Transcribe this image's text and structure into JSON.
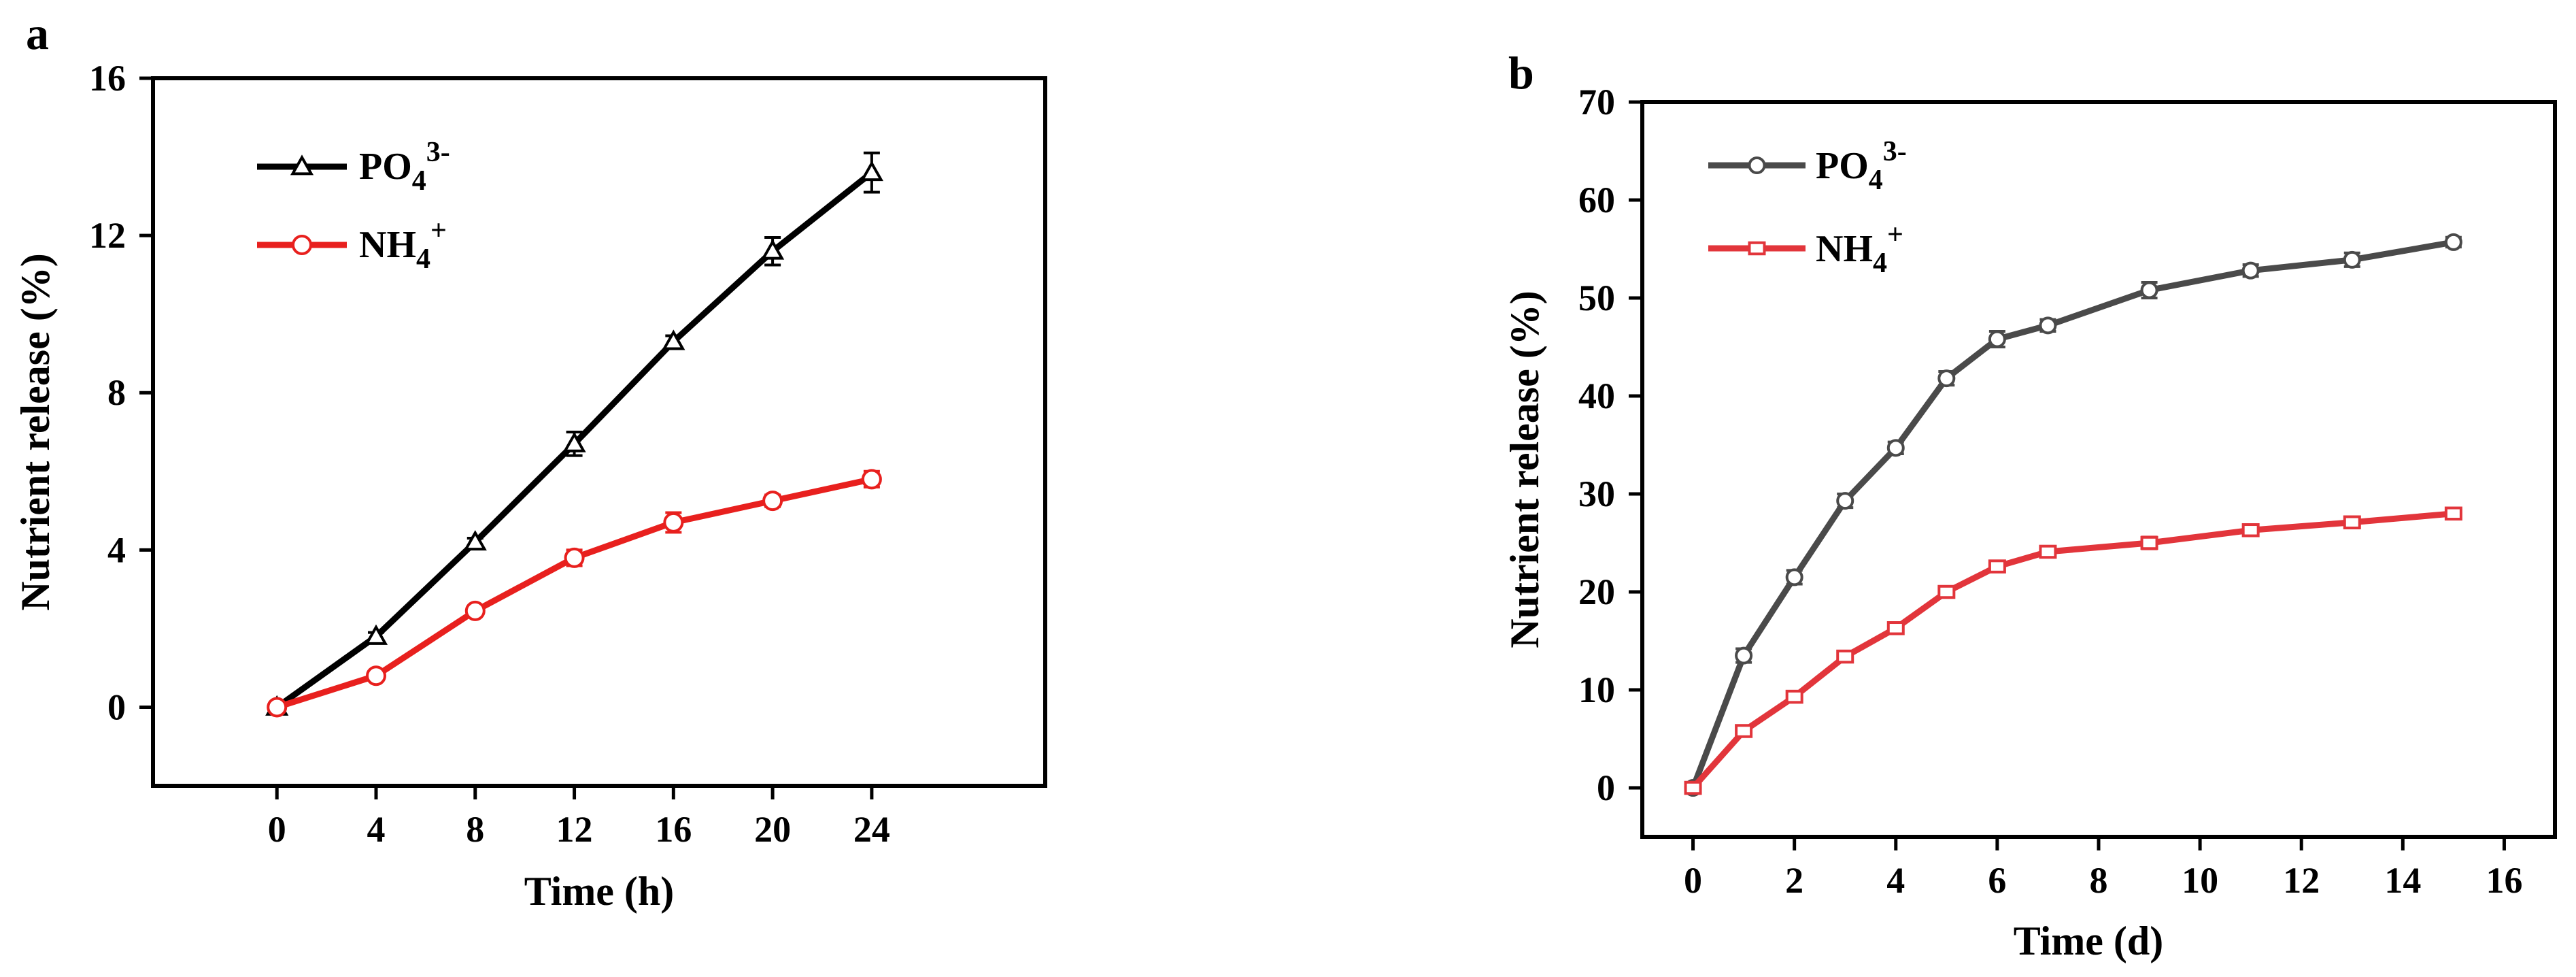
{
  "chart_data": [
    {
      "panel": "a",
      "type": "line",
      "xlabel": "Time (h)",
      "ylabel": "Nutrient release (%)",
      "xlim": [
        -5,
        31
      ],
      "ylim": [
        -2,
        16
      ],
      "xticks": [
        0,
        4,
        8,
        12,
        16,
        20,
        24
      ],
      "yticks": [
        0,
        4,
        8,
        12,
        16
      ],
      "legend_position": "top-left",
      "series": [
        {
          "name": "PO4 3-",
          "legend_main": "PO",
          "legend_sub": "4",
          "legend_sup": "3-",
          "color": "#000000",
          "marker": "triangle-open",
          "x": [
            0,
            4,
            8,
            12,
            16,
            20,
            24
          ],
          "values": [
            0,
            1.8,
            4.2,
            6.7,
            9.3,
            11.6,
            13.6
          ],
          "errors": [
            0.05,
            0.1,
            0.1,
            0.3,
            0.15,
            0.35,
            0.5
          ]
        },
        {
          "name": "NH4 +",
          "legend_main": "NH",
          "legend_sub": "4",
          "legend_sup": "+",
          "color": "#e8201e",
          "marker": "circle-open",
          "x": [
            0,
            4,
            8,
            12,
            16,
            20,
            24
          ],
          "values": [
            0,
            0.8,
            2.45,
            3.8,
            4.7,
            5.25,
            5.8
          ],
          "errors": [
            0.05,
            0.05,
            0.1,
            0.2,
            0.25,
            0.15,
            0.2
          ]
        }
      ]
    },
    {
      "panel": "b",
      "type": "line",
      "xlabel": "Time (d)",
      "ylabel": "Nutrient release (%)",
      "xlim": [
        -1,
        17
      ],
      "ylim": [
        -5,
        70
      ],
      "xticks": [
        0,
        2,
        4,
        6,
        8,
        10,
        12,
        14,
        16
      ],
      "yticks": [
        0,
        10,
        20,
        30,
        40,
        50,
        60,
        70
      ],
      "legend_position": "top-left",
      "series": [
        {
          "name": "PO4 3-",
          "legend_main": "PO",
          "legend_sub": "4",
          "legend_sup": "3-",
          "color": "#4a4a4a",
          "marker": "circle-open",
          "x": [
            0,
            1,
            2,
            3,
            4,
            5,
            6,
            7,
            9,
            11,
            13,
            15
          ],
          "values": [
            0,
            13.5,
            21.5,
            29.3,
            34.7,
            41.8,
            45.8,
            47.2,
            50.8,
            52.8,
            53.9,
            55.7
          ],
          "errors": [
            0.2,
            0.7,
            0.7,
            0.7,
            0.6,
            0.7,
            0.8,
            0.6,
            0.8,
            0.6,
            0.7,
            0.5
          ]
        },
        {
          "name": "NH4 +",
          "legend_main": "NH",
          "legend_sub": "4",
          "legend_sup": "+",
          "color": "#e2353b",
          "marker": "square-open",
          "x": [
            0,
            1,
            2,
            3,
            4,
            5,
            6,
            7,
            9,
            11,
            13,
            15
          ],
          "values": [
            0,
            5.8,
            9.3,
            13.4,
            16.3,
            20.0,
            22.6,
            24.1,
            25.0,
            26.3,
            27.1,
            28.0
          ],
          "errors": [
            0.2,
            0.5,
            0.5,
            0.5,
            0.5,
            0.5,
            0.5,
            0.5,
            0.6,
            0.5,
            0.5,
            0.4
          ]
        }
      ]
    }
  ]
}
